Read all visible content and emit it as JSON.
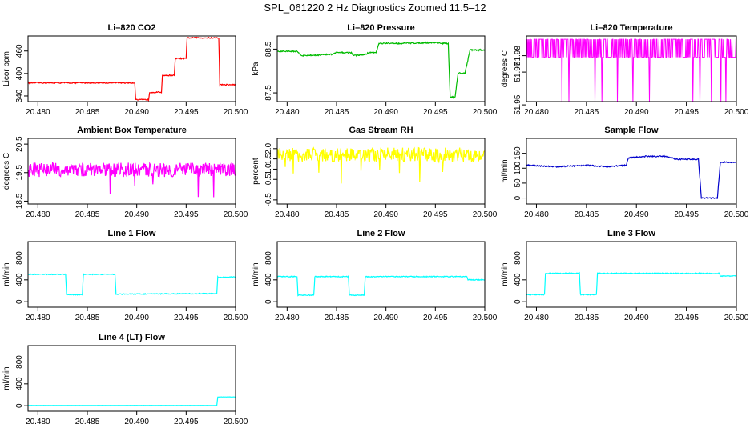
{
  "figure_title": "SPL_061220  2 Hz Diagnostics Zoomed 11.5–12",
  "chart_data": [
    {
      "type": "line",
      "title": "Li–820 CO2",
      "ylabel": "Licor ppm",
      "color": "#ff0000",
      "x": [
        20.479,
        20.4898,
        20.4899,
        20.4912,
        20.4913,
        20.4925,
        20.4926,
        20.4938,
        20.4939,
        20.495,
        20.4951,
        20.4983,
        20.4984,
        20.5
      ],
      "y": [
        375,
        375,
        330,
        330,
        350,
        350,
        395,
        395,
        440,
        440,
        495,
        495,
        370,
        370
      ],
      "xlim": [
        20.479,
        20.5
      ],
      "ylim": [
        325,
        500
      ],
      "xticks": [
        "20.480",
        "20.485",
        "20.490",
        "20.495",
        "20.500"
      ],
      "yticks": [
        {
          "v": 340,
          "l": "340"
        },
        {
          "v": 400,
          "l": "400"
        },
        {
          "v": 460,
          "l": "460"
        }
      ],
      "noise": 1.5
    },
    {
      "type": "line",
      "title": "Li–820 Pressure",
      "ylabel": "kPa",
      "color": "#00bb00",
      "x": [
        20.479,
        20.481,
        20.4815,
        20.4845,
        20.485,
        20.4865,
        20.4868,
        20.488,
        20.4882,
        20.489,
        20.4893,
        20.491,
        20.495,
        20.4963,
        20.4965,
        20.497,
        20.4973,
        20.498,
        20.4985,
        20.5
      ],
      "y": [
        88.45,
        88.45,
        88.35,
        88.38,
        88.42,
        88.42,
        88.35,
        88.38,
        88.42,
        88.42,
        88.63,
        88.63,
        88.65,
        88.62,
        87.4,
        87.4,
        87.95,
        87.95,
        88.48,
        88.48
      ],
      "xlim": [
        20.479,
        20.5
      ],
      "ylim": [
        87.3,
        88.8
      ],
      "xticks": [
        "20.480",
        "20.485",
        "20.490",
        "20.495",
        "20.500"
      ],
      "yticks": [
        {
          "v": 87.5,
          "l": "87.5"
        },
        {
          "v": 88.5,
          "l": "88.5"
        }
      ],
      "noise": 0.015
    },
    {
      "type": "line",
      "title": "Li–820 Temperature",
      "ylabel": "degrees C",
      "color": "#ff00ff",
      "x": [
        20.479,
        20.5
      ],
      "y": [
        51.982,
        51.982
      ],
      "xlim": [
        20.479,
        20.5
      ],
      "ylim": [
        51.952,
        51.992
      ],
      "xticks": [
        "20.480",
        "20.485",
        "20.490",
        "20.495",
        "20.500"
      ],
      "yticks": [
        {
          "v": 51.95,
          "l": "51.95"
        },
        {
          "v": 51.97,
          "l": "51.97"
        },
        {
          "v": 51.98,
          "l": "51.98"
        }
      ],
      "noise": 0,
      "dense_band": [
        51.979,
        51.99
      ]
    },
    {
      "type": "line",
      "title": "Ambient Box Temperature",
      "ylabel": "degrees C",
      "color": "#ff00ff",
      "x": [
        20.479,
        20.5
      ],
      "y": [
        19.6,
        19.6
      ],
      "xlim": [
        20.479,
        20.5
      ],
      "ylim": [
        18.4,
        20.7
      ],
      "xticks": [
        "20.480",
        "20.485",
        "20.490",
        "20.495",
        "20.500"
      ],
      "yticks": [
        {
          "v": 18.5,
          "l": "18.5"
        },
        {
          "v": 19.5,
          "l": "19.5"
        },
        {
          "v": 20.5,
          "l": "20.5"
        }
      ],
      "noise": 0.25
    },
    {
      "type": "line",
      "title": "Gas Stream RH",
      "ylabel": "percent",
      "color": "#ffff00",
      "x": [
        20.479,
        20.5
      ],
      "y": [
        1.7,
        1.7
      ],
      "xlim": [
        20.479,
        20.5
      ],
      "ylim": [
        -0.7,
        2.5
      ],
      "xticks": [
        "20.480",
        "20.485",
        "20.490",
        "20.495",
        "20.500"
      ],
      "yticks": [
        {
          "v": -0.5,
          "l": "-0.5"
        },
        {
          "v": 0.5,
          "l": "0.5"
        },
        {
          "v": 1.0,
          "l": "1.0"
        },
        {
          "v": 1.5,
          "l": "1.5"
        },
        {
          "v": 2.0,
          "l": "2.0"
        }
      ],
      "noise": 0.35
    },
    {
      "type": "line",
      "title": "Sample Flow",
      "ylabel": "ml/min",
      "color": "#0000cc",
      "x": [
        20.479,
        20.482,
        20.485,
        20.487,
        20.489,
        20.4892,
        20.491,
        20.493,
        20.494,
        20.4962,
        20.4965,
        20.4981,
        20.4984,
        20.5
      ],
      "y": [
        110,
        105,
        110,
        105,
        110,
        135,
        140,
        140,
        130,
        130,
        0,
        0,
        120,
        120
      ],
      "xlim": [
        20.479,
        20.5
      ],
      "ylim": [
        -20,
        200
      ],
      "xticks": [
        "20.480",
        "20.485",
        "20.490",
        "20.495",
        "20.500"
      ],
      "yticks": [
        {
          "v": 0,
          "l": "0"
        },
        {
          "v": 50,
          "l": "50"
        },
        {
          "v": 100,
          "l": "100"
        },
        {
          "v": 150,
          "l": "150"
        }
      ],
      "noise": 2
    },
    {
      "type": "line",
      "title": "Line 1 Flow",
      "ylabel": "ml/min",
      "color": "#00ffff",
      "x": [
        20.479,
        20.4828,
        20.4829,
        20.4845,
        20.4846,
        20.4878,
        20.4879,
        20.4981,
        20.4982,
        20.5
      ],
      "y": [
        500,
        500,
        130,
        130,
        500,
        500,
        140,
        150,
        450,
        450
      ],
      "xlim": [
        20.479,
        20.5
      ],
      "ylim": [
        -100,
        1100
      ],
      "xticks": [
        "20.480",
        "20.485",
        "20.490",
        "20.495",
        "20.500"
      ],
      "yticks": [
        {
          "v": 0,
          "l": "0"
        },
        {
          "v": 400,
          "l": "400"
        },
        {
          "v": 800,
          "l": "800"
        }
      ],
      "noise": 8
    },
    {
      "type": "line",
      "title": "Line 2 Flow",
      "ylabel": "ml/min",
      "color": "#00ffff",
      "x": [
        20.479,
        20.481,
        20.4811,
        20.4827,
        20.4828,
        20.4862,
        20.4863,
        20.4878,
        20.4879,
        20.4982,
        20.4983,
        20.5
      ],
      "y": [
        460,
        460,
        120,
        120,
        460,
        460,
        120,
        120,
        460,
        460,
        400,
        400
      ],
      "xlim": [
        20.479,
        20.5
      ],
      "ylim": [
        -100,
        1100
      ],
      "xticks": [
        "20.480",
        "20.485",
        "20.490",
        "20.495",
        "20.500"
      ],
      "yticks": [
        {
          "v": 0,
          "l": "0"
        },
        {
          "v": 400,
          "l": "400"
        },
        {
          "v": 800,
          "l": "800"
        }
      ],
      "noise": 8
    },
    {
      "type": "line",
      "title": "Line 3 Flow",
      "ylabel": "ml/min",
      "color": "#00ffff",
      "x": [
        20.479,
        20.4808,
        20.4809,
        20.4843,
        20.4844,
        20.486,
        20.4861,
        20.4983,
        20.4984,
        20.5
      ],
      "y": [
        130,
        130,
        520,
        520,
        130,
        130,
        520,
        520,
        470,
        470
      ],
      "xlim": [
        20.479,
        20.5
      ],
      "ylim": [
        -100,
        1100
      ],
      "xticks": [
        "20.480",
        "20.485",
        "20.490",
        "20.495",
        "20.500"
      ],
      "yticks": [
        {
          "v": 0,
          "l": "0"
        },
        {
          "v": 400,
          "l": "400"
        },
        {
          "v": 800,
          "l": "800"
        }
      ],
      "noise": 8
    },
    {
      "type": "line",
      "title": "Line 4 (LT) Flow",
      "ylabel": "ml/min",
      "color": "#00ffff",
      "x": [
        20.479,
        20.4981,
        20.4982,
        20.5
      ],
      "y": [
        5,
        5,
        160,
        160
      ],
      "xlim": [
        20.479,
        20.5
      ],
      "ylim": [
        -100,
        1100
      ],
      "xticks": [
        "20.480",
        "20.485",
        "20.490",
        "20.495",
        "20.500"
      ],
      "yticks": [
        {
          "v": 0,
          "l": "0"
        },
        {
          "v": 400,
          "l": "400"
        },
        {
          "v": 800,
          "l": "800"
        }
      ],
      "noise": 2
    }
  ]
}
